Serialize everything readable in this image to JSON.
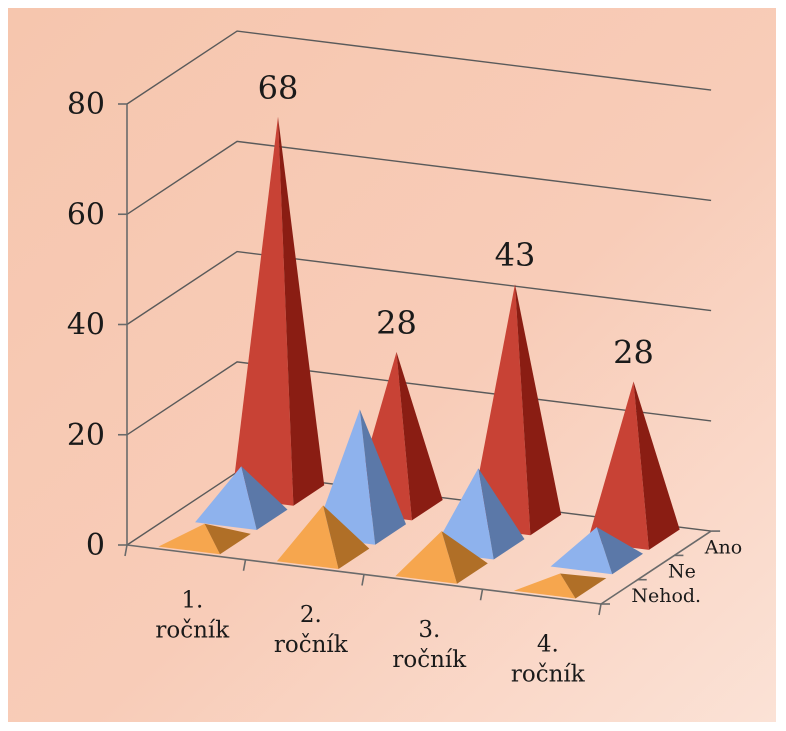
{
  "chart_data": {
    "type": "bar",
    "style": "3d-pyramid",
    "categories": [
      "1. ročník",
      "2. ročník",
      "3. ročník",
      "4. ročník"
    ],
    "category_lines": [
      [
        "1.",
        "ročník"
      ],
      [
        "2.",
        "ročník"
      ],
      [
        "3.",
        "ročník"
      ],
      [
        "4.",
        "ročník"
      ]
    ],
    "series": [
      {
        "name": "Ano",
        "values": [
          68,
          28,
          43,
          28
        ],
        "color": "#c0281a",
        "data_labels": [
          "68",
          "28",
          "43",
          "28"
        ]
      },
      {
        "name": "Ne",
        "values": [
          9,
          22,
          14,
          6
        ],
        "color": "#7fa7ea"
      },
      {
        "name": "Nehod.",
        "values": [
          3,
          9,
          7,
          2
        ],
        "color": "#f59a36"
      }
    ],
    "y_ticks": [
      "0",
      "20",
      "40",
      "60",
      "80"
    ],
    "ylim": [
      0,
      80
    ],
    "grid": true,
    "background": [
      "#f6c6ae",
      "#fbe2d6"
    ],
    "title": "",
    "xlabel": "",
    "ylabel": ""
  }
}
